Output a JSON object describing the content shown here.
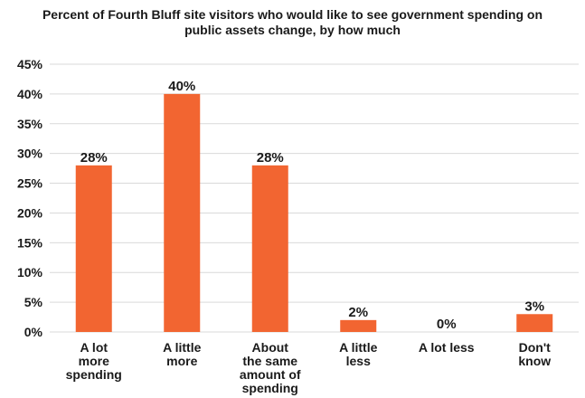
{
  "chart_data": {
    "type": "bar",
    "title_line1": "Percent of Fourth Bluff site visitors who would like to see government spending on",
    "title_line2": "public assets change, by how much",
    "categories": [
      [
        "A lot",
        "more",
        "spending"
      ],
      [
        "A little",
        "more"
      ],
      [
        "About",
        "the same",
        "amount of",
        "spending"
      ],
      [
        "A little",
        "less"
      ],
      [
        "A lot less"
      ],
      [
        "Don't",
        "know"
      ]
    ],
    "values": [
      28,
      40,
      28,
      2,
      0,
      3
    ],
    "value_labels": [
      "28%",
      "40%",
      "28%",
      "2%",
      "0%",
      "3%"
    ],
    "ylim": [
      0,
      45
    ],
    "yticks": [
      0,
      5,
      10,
      15,
      20,
      25,
      30,
      35,
      40,
      45
    ],
    "ytick_labels": [
      "0%",
      "5%",
      "10%",
      "15%",
      "20%",
      "25%",
      "30%",
      "35%",
      "40%",
      "45%"
    ],
    "bar_color": "#f26531",
    "grid_color": "#d9d9d9",
    "grid": true
  }
}
